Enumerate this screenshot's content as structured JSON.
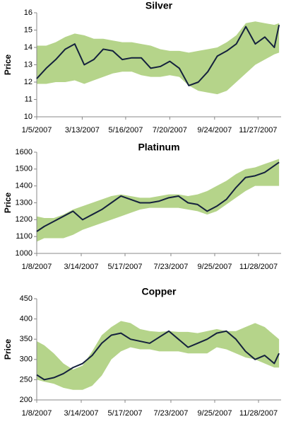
{
  "chart_data": [
    {
      "type": "line",
      "title": "Silver",
      "y_label": "Price",
      "x": [
        "2007-01-05",
        "2007-01-19",
        "2007-02-02",
        "2007-02-16",
        "2007-03-02",
        "2007-03-16",
        "2007-03-30",
        "2007-04-13",
        "2007-04-27",
        "2007-05-11",
        "2007-05-25",
        "2007-06-08",
        "2007-06-22",
        "2007-07-06",
        "2007-07-20",
        "2007-08-03",
        "2007-08-17",
        "2007-08-31",
        "2007-09-14",
        "2007-09-28",
        "2007-10-12",
        "2007-10-26",
        "2007-11-09",
        "2007-11-23",
        "2007-12-07",
        "2007-12-21",
        "2007-12-28"
      ],
      "band": {
        "color": "#b5d48a",
        "upper": [
          14.1,
          14.1,
          14.3,
          14.6,
          14.8,
          14.7,
          14.5,
          14.5,
          14.4,
          14.3,
          14.3,
          14.2,
          14.1,
          13.9,
          13.8,
          13.8,
          13.7,
          13.8,
          13.9,
          14.0,
          14.3,
          14.7,
          15.4,
          15.5,
          15.4,
          15.3,
          15.4
        ],
        "lower": [
          11.9,
          11.9,
          12.0,
          12.0,
          12.1,
          11.9,
          12.1,
          12.3,
          12.5,
          12.6,
          12.6,
          12.4,
          12.3,
          12.3,
          12.4,
          12.3,
          11.8,
          11.5,
          11.4,
          11.3,
          11.5,
          12.0,
          12.5,
          13.0,
          13.3,
          13.6,
          13.7
        ]
      },
      "series": [
        {
          "color": "#14213d",
          "values": [
            12.2,
            12.8,
            13.3,
            13.9,
            14.2,
            13.0,
            13.3,
            13.9,
            13.8,
            13.3,
            13.4,
            13.4,
            12.8,
            12.9,
            13.2,
            12.8,
            11.8,
            12.0,
            12.6,
            13.5,
            13.8,
            14.2,
            15.2,
            14.2,
            14.6,
            14.0,
            15.3
          ]
        }
      ],
      "xlim": [
        "2007-01-05",
        "2007-12-31"
      ],
      "xticks": [
        {
          "value": "2007-01-05",
          "label": "1/5/2007"
        },
        {
          "value": "2007-03-13",
          "label": "3/13/2007"
        },
        {
          "value": "2007-05-16",
          "label": "5/16/2007"
        },
        {
          "value": "2007-07-20",
          "label": "7/20/2007"
        },
        {
          "value": "2007-09-24",
          "label": "9/24/2007"
        },
        {
          "value": "2007-11-27",
          "label": "11/27/2007"
        }
      ],
      "ylim": [
        10,
        16
      ],
      "yticks": [
        10,
        11,
        12,
        13,
        14,
        15,
        16
      ]
    },
    {
      "type": "line",
      "title": "Platinum",
      "y_label": "Price",
      "x": [
        "2007-01-08",
        "2007-01-19",
        "2007-02-02",
        "2007-02-16",
        "2007-03-02",
        "2007-03-16",
        "2007-03-30",
        "2007-04-13",
        "2007-04-27",
        "2007-05-11",
        "2007-05-25",
        "2007-06-08",
        "2007-06-22",
        "2007-07-06",
        "2007-07-20",
        "2007-08-03",
        "2007-08-17",
        "2007-08-31",
        "2007-09-14",
        "2007-09-28",
        "2007-10-12",
        "2007-10-26",
        "2007-11-09",
        "2007-11-23",
        "2007-12-07",
        "2007-12-21",
        "2007-12-28"
      ],
      "band": {
        "color": "#b5d48a",
        "upper": [
          1220,
          1210,
          1210,
          1230,
          1260,
          1280,
          1300,
          1320,
          1340,
          1350,
          1340,
          1330,
          1330,
          1340,
          1350,
          1350,
          1340,
          1350,
          1370,
          1400,
          1430,
          1470,
          1500,
          1510,
          1530,
          1550,
          1560
        ],
        "lower": [
          1070,
          1090,
          1090,
          1090,
          1110,
          1140,
          1160,
          1180,
          1200,
          1220,
          1240,
          1260,
          1270,
          1270,
          1270,
          1270,
          1260,
          1250,
          1230,
          1250,
          1290,
          1330,
          1370,
          1400,
          1400,
          1400,
          1400
        ]
      },
      "series": [
        {
          "color": "#14213d",
          "values": [
            1130,
            1160,
            1190,
            1220,
            1250,
            1200,
            1230,
            1260,
            1300,
            1340,
            1320,
            1300,
            1300,
            1310,
            1330,
            1340,
            1300,
            1290,
            1250,
            1280,
            1320,
            1390,
            1450,
            1460,
            1480,
            1520,
            1540
          ]
        }
      ],
      "xlim": [
        "2007-01-08",
        "2007-12-31"
      ],
      "xticks": [
        {
          "value": "2007-01-08",
          "label": "1/8/2007"
        },
        {
          "value": "2007-03-14",
          "label": "3/14/2007"
        },
        {
          "value": "2007-05-17",
          "label": "5/17/2007"
        },
        {
          "value": "2007-07-23",
          "label": "7/23/2007"
        },
        {
          "value": "2007-09-25",
          "label": "9/25/2007"
        },
        {
          "value": "2007-11-28",
          "label": "11/28/2007"
        }
      ],
      "ylim": [
        1000,
        1600
      ],
      "yticks": [
        1000,
        1100,
        1200,
        1300,
        1400,
        1500,
        1600
      ]
    },
    {
      "type": "line",
      "title": "Copper",
      "y_label": "Price",
      "x": [
        "2007-01-08",
        "2007-01-19",
        "2007-02-02",
        "2007-02-16",
        "2007-03-02",
        "2007-03-16",
        "2007-03-30",
        "2007-04-13",
        "2007-04-27",
        "2007-05-11",
        "2007-05-25",
        "2007-06-08",
        "2007-06-22",
        "2007-07-06",
        "2007-07-20",
        "2007-08-03",
        "2007-08-17",
        "2007-08-31",
        "2007-09-14",
        "2007-09-28",
        "2007-10-12",
        "2007-10-26",
        "2007-11-09",
        "2007-11-23",
        "2007-12-07",
        "2007-12-21",
        "2007-12-28"
      ],
      "band": {
        "color": "#b5d48a",
        "upper": [
          345,
          335,
          315,
          290,
          275,
          285,
          320,
          360,
          380,
          395,
          390,
          375,
          370,
          368,
          370,
          368,
          368,
          365,
          370,
          375,
          370,
          370,
          380,
          390,
          380,
          360,
          350
        ],
        "lower": [
          250,
          245,
          240,
          230,
          225,
          225,
          235,
          260,
          300,
          320,
          330,
          325,
          325,
          320,
          320,
          320,
          315,
          315,
          315,
          330,
          325,
          315,
          305,
          300,
          290,
          280,
          280
        ]
      },
      "series": [
        {
          "color": "#14213d",
          "values": [
            262,
            250,
            255,
            265,
            280,
            290,
            310,
            340,
            360,
            365,
            350,
            345,
            340,
            355,
            370,
            350,
            330,
            340,
            350,
            365,
            370,
            350,
            320,
            300,
            310,
            290,
            315
          ]
        }
      ],
      "xlim": [
        "2007-01-08",
        "2007-12-31"
      ],
      "xticks": [
        {
          "value": "2007-01-08",
          "label": "1/8/2007"
        },
        {
          "value": "2007-03-14",
          "label": "3/14/2007"
        },
        {
          "value": "2007-05-17",
          "label": "5/17/2007"
        },
        {
          "value": "2007-07-23",
          "label": "7/23/2007"
        },
        {
          "value": "2007-09-25",
          "label": "9/25/2007"
        },
        {
          "value": "2007-11-28",
          "label": "11/28/2007"
        }
      ],
      "ylim": [
        200,
        450
      ],
      "yticks": [
        200,
        250,
        300,
        350,
        400,
        450
      ]
    }
  ]
}
